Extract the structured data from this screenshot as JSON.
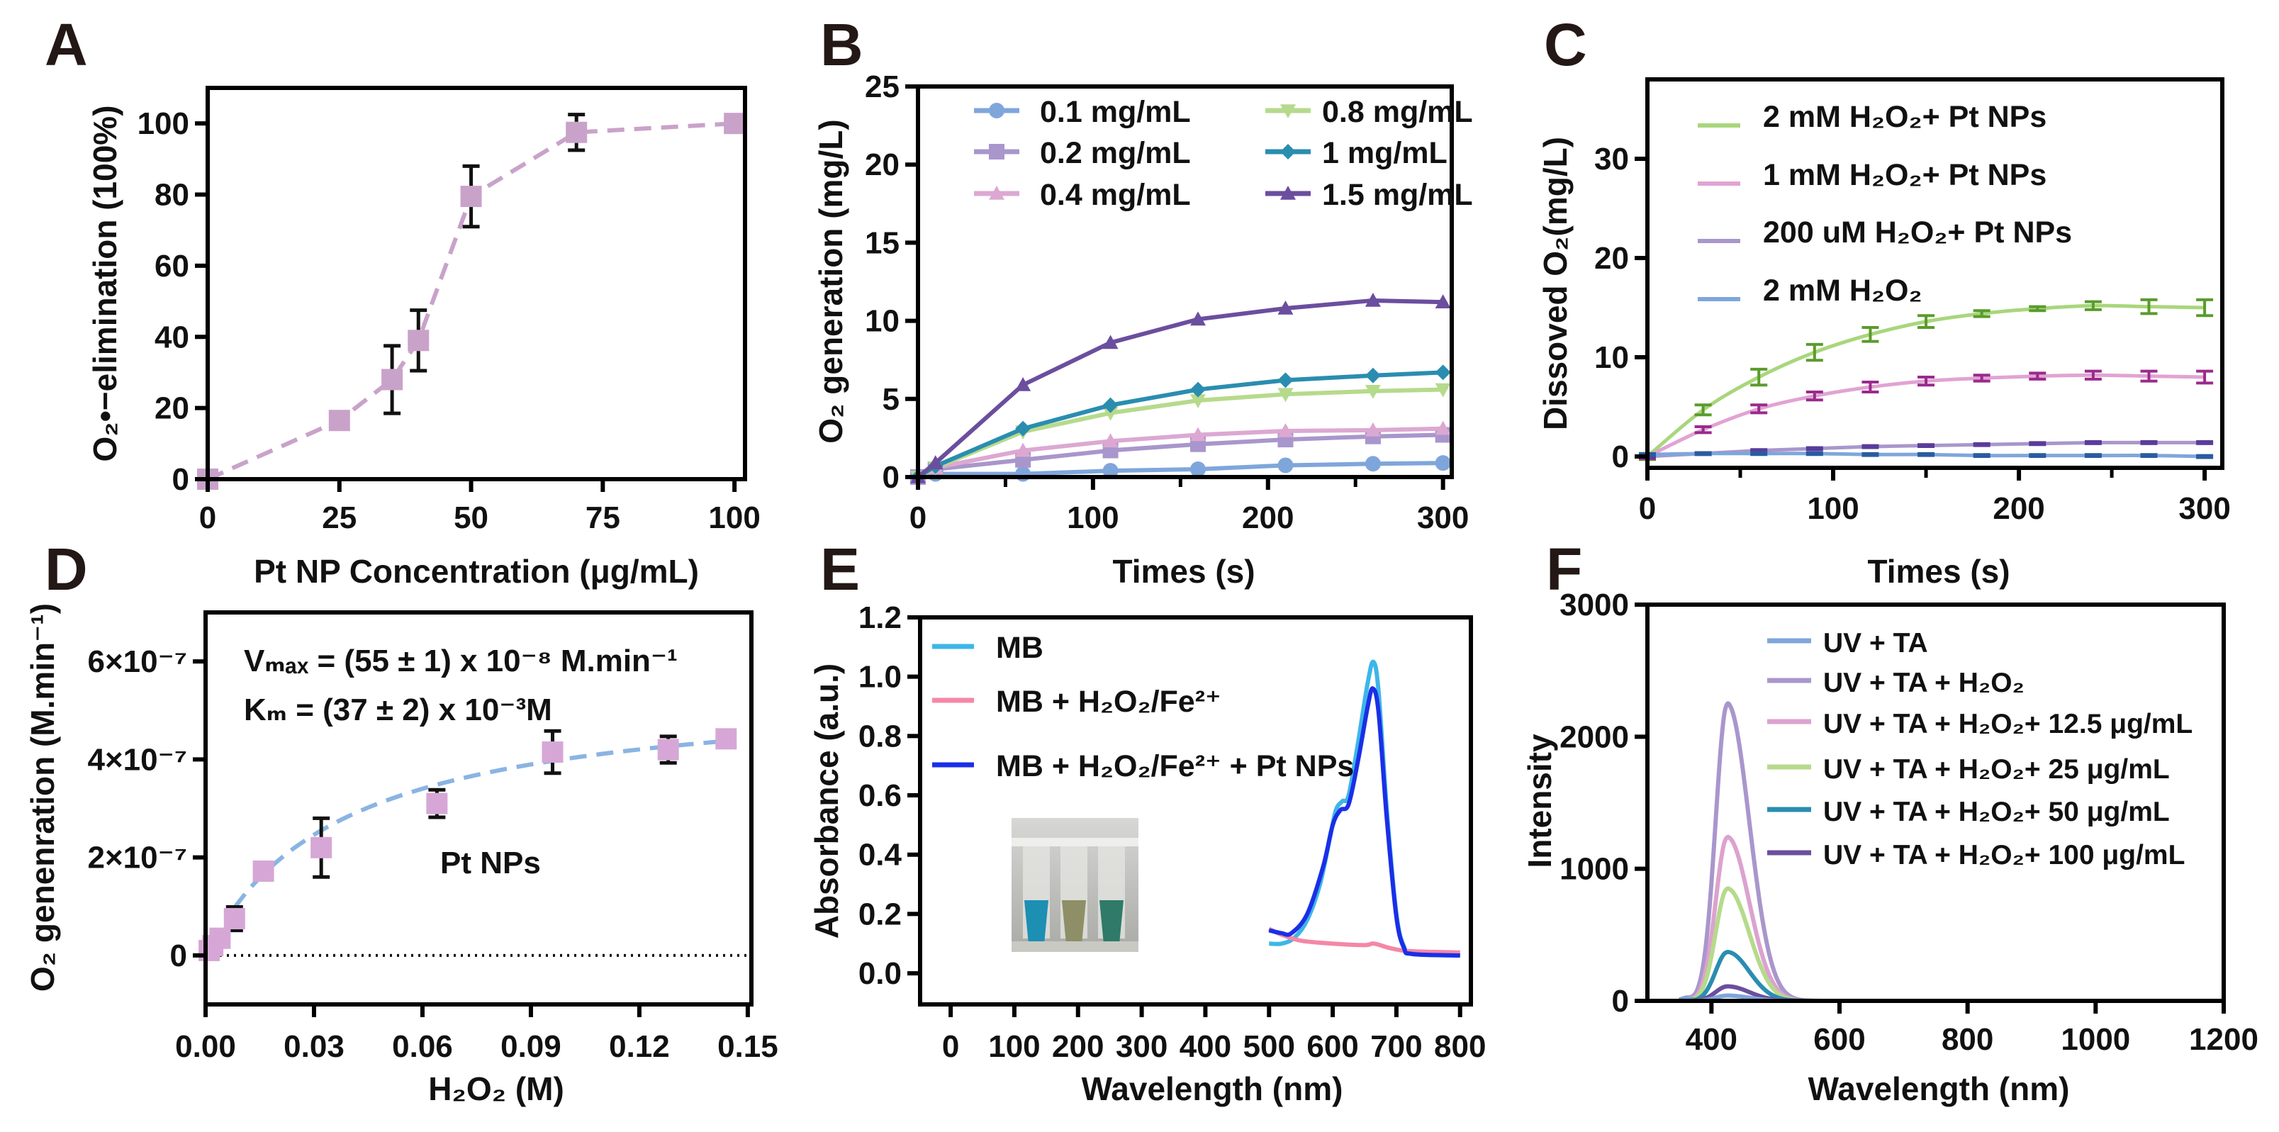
{
  "figure": {
    "panel_labels": [
      "A",
      "B",
      "C",
      "D",
      "E",
      "F"
    ]
  },
  "chart_data": [
    {
      "panel": "A",
      "type": "line",
      "xlabel": "Pt NP Concentration  (μg/mL)",
      "ylabel": "O₂•−elimination (100%)",
      "xlim": [
        0,
        102
      ],
      "ylim": [
        0,
        110
      ],
      "x_ticks": [
        {
          "value": 0,
          "label": "0"
        },
        {
          "value": 25,
          "label": "25"
        },
        {
          "value": 50,
          "label": "50"
        },
        {
          "value": 75,
          "label": "75"
        },
        {
          "value": 100,
          "label": "100"
        }
      ],
      "y_ticks": [
        {
          "value": 0,
          "label": "0"
        },
        {
          "value": 20,
          "label": "20"
        },
        {
          "value": 40,
          "label": "40"
        },
        {
          "value": 60,
          "label": "60"
        },
        {
          "value": 80,
          "label": "80"
        },
        {
          "value": 100,
          "label": "100"
        }
      ],
      "series": [
        {
          "x": [
            0,
            25,
            35,
            40,
            50,
            70,
            100
          ],
          "y": [
            0,
            16.5,
            28,
            39,
            79.5,
            97.5,
            100
          ],
          "err": [
            0,
            0,
            9.5,
            8.5,
            8.5,
            5,
            0
          ],
          "color": "#c9a2c9",
          "line_style": "dashed",
          "marker": "square"
        }
      ]
    },
    {
      "panel": "B",
      "type": "line",
      "xlabel": "Times (s)",
      "ylabel": "O₂ generation (mg/L)",
      "xlim": [
        0,
        305
      ],
      "ylim": [
        0,
        25
      ],
      "x_ticks": [
        {
          "value": 0,
          "label": "0"
        },
        {
          "value": 100,
          "label": "100"
        },
        {
          "value": 200,
          "label": "200"
        },
        {
          "value": 300,
          "label": "300"
        }
      ],
      "y_ticks": [
        {
          "value": 0,
          "label": "0"
        },
        {
          "value": 5,
          "label": "5"
        },
        {
          "value": 10,
          "label": "10"
        },
        {
          "value": 15,
          "label": "15"
        },
        {
          "value": 20,
          "label": "20"
        },
        {
          "value": 25,
          "label": "25"
        }
      ],
      "legend": "top",
      "x": [
        0,
        10,
        60,
        110,
        160,
        210,
        260,
        300
      ],
      "series": [
        {
          "name": "0.1 mg/mL",
          "values": [
            0,
            0.2,
            0.2,
            0.4,
            0.5,
            0.75,
            0.85,
            0.9
          ],
          "color": "#7fa6db",
          "marker": "circle"
        },
        {
          "name": "0.2 mg/mL",
          "values": [
            0,
            0.5,
            1.1,
            1.7,
            2.1,
            2.4,
            2.6,
            2.7
          ],
          "color": "#a996cc",
          "marker": "square"
        },
        {
          "name": "0.4 mg/mL",
          "values": [
            0,
            0.6,
            1.7,
            2.3,
            2.7,
            2.95,
            3.0,
            3.1
          ],
          "color": "#dca8d2",
          "marker": "triangle"
        },
        {
          "name": "0.8 mg/mL",
          "values": [
            0,
            0.6,
            2.9,
            4.1,
            4.9,
            5.3,
            5.5,
            5.6
          ],
          "color": "#b6da8c",
          "marker": "triangle-down"
        },
        {
          "name": "1 mg/mL",
          "values": [
            0,
            0.7,
            3.1,
            4.6,
            5.6,
            6.2,
            6.5,
            6.7
          ],
          "color": "#2a8db0",
          "marker": "diamond"
        },
        {
          "name": "1.5 mg/mL",
          "values": [
            0,
            0.9,
            5.9,
            8.6,
            10.1,
            10.8,
            11.3,
            11.2
          ],
          "color": "#6b4e9e",
          "marker": "triangle"
        }
      ]
    },
    {
      "panel": "C",
      "type": "line",
      "xlabel": "Times (s)",
      "ylabel": "Dissoved O₂(mg/L)",
      "xlim": [
        0,
        309.5
      ],
      "ylim": [
        -1.14,
        38
      ],
      "x_ticks": [
        {
          "value": 0,
          "label": "0"
        },
        {
          "value": 100,
          "label": "100"
        },
        {
          "value": 200,
          "label": "200"
        },
        {
          "value": 300,
          "label": "300"
        }
      ],
      "y_ticks": [
        {
          "value": 0,
          "label": "0"
        },
        {
          "value": 10,
          "label": "10"
        },
        {
          "value": 20,
          "label": "20"
        },
        {
          "value": 30,
          "label": "30"
        }
      ],
      "legend": "top-left",
      "x": [
        0,
        30,
        60,
        90,
        120,
        150,
        180,
        210,
        240,
        270,
        300
      ],
      "series": [
        {
          "name": "2 mM H₂O₂+ Pt NPs",
          "values": [
            0,
            4.7,
            8,
            10.5,
            12.3,
            13.6,
            14.4,
            14.9,
            15.2,
            15.1,
            15
          ],
          "err": [
            0.3,
            0.5,
            0.8,
            0.8,
            0.7,
            0.6,
            0.3,
            0.2,
            0.4,
            0.7,
            0.8
          ],
          "color": "#a9d67c",
          "err_color": "#5a9b2c"
        },
        {
          "name": "1 mM H₂O₂+ Pt NPs",
          "values": [
            0,
            2.7,
            4.8,
            6.1,
            7,
            7.6,
            7.9,
            8.1,
            8.2,
            8.1,
            8
          ],
          "err": [
            0.2,
            0.3,
            0.4,
            0.4,
            0.5,
            0.4,
            0.3,
            0.3,
            0.4,
            0.5,
            0.6
          ],
          "color": "#e1a3d3",
          "err_color": "#9a2a8c"
        },
        {
          "name": "200 uM H₂O₂+ Pt NPs",
          "values": [
            0,
            0.3,
            0.6,
            0.8,
            1,
            1.1,
            1.2,
            1.3,
            1.4,
            1.4,
            1.4
          ],
          "err": [
            0.1,
            0.1,
            0.1,
            0.1,
            0.1,
            0.1,
            0.1,
            0.1,
            0.1,
            0.1,
            0.1
          ],
          "color": "#a996cc",
          "err_color": "#5b3b9b"
        },
        {
          "name": "2 mM H₂O₂",
          "values": [
            0.2,
            0.3,
            0.3,
            0.3,
            0.2,
            0.2,
            0.1,
            0.1,
            0.1,
            0.1,
            0.0
          ],
          "err": [
            0.1,
            0.1,
            0.1,
            0.1,
            0.1,
            0.1,
            0.1,
            0.1,
            0.1,
            0.1,
            0.1
          ],
          "color": "#7fa6db",
          "err_color": "#2a5ba1"
        }
      ]
    },
    {
      "panel": "D",
      "type": "scatter",
      "xlabel": "H₂O₂ (M)",
      "ylabel": "O₂ genenration (M.min⁻¹)",
      "xlim": [
        0,
        0.151
      ],
      "ylim": [
        -1e-07,
        7e-07
      ],
      "x_ticks": [
        {
          "value": 0,
          "label": "0.00"
        },
        {
          "value": 0.03,
          "label": "0.03"
        },
        {
          "value": 0.06,
          "label": "0.06"
        },
        {
          "value": 0.09,
          "label": "0.09"
        },
        {
          "value": 0.12,
          "label": "0.12"
        },
        {
          "value": 0.15,
          "label": "0.15"
        }
      ],
      "y_ticks": [
        {
          "value": 0,
          "label": "0"
        },
        {
          "value": 2e-07,
          "label": "2×10⁻⁷"
        },
        {
          "value": 4e-07,
          "label": "4×10⁻⁷"
        },
        {
          "value": 6e-07,
          "label": "6×10⁻⁷"
        }
      ],
      "annotations": [
        "Vₘₐₓ = (55 ± 1) x 10⁻⁸ M.min⁻¹",
        "Kₘ = (37 ± 2) x 10⁻³M",
        "Pt NPs"
      ],
      "points": {
        "x": [
          0.001,
          0.002,
          0.004,
          0.008,
          0.016,
          0.032,
          0.064,
          0.096,
          0.128,
          0.144
        ],
        "y": [
          1e-08,
          2e-08,
          3.5e-08,
          7.5e-08,
          1.72e-07,
          2.2e-07,
          3.1e-07,
          4.15e-07,
          4.2e-07,
          4.42e-07
        ],
        "err": [
          0,
          0,
          0,
          2.4e-08,
          0,
          6e-08,
          2.8e-08,
          4.3e-08,
          2.7e-08,
          0
        ],
        "color": "#d6a7d6"
      },
      "fit": {
        "model": "michaelis-menten",
        "vmax": 5.5e-07,
        "km": 0.037,
        "x_range": [
          0.008,
          0.144
        ],
        "color": "#8ab4e2"
      },
      "reference_line_y": 0
    },
    {
      "panel": "E",
      "type": "line",
      "xlabel": "Wavelength (nm)",
      "ylabel": "Absorbance (a.u.)",
      "xlim": [
        -48,
        817
      ],
      "ylim": [
        -0.105,
        1.2
      ],
      "x_ticks": [
        {
          "value": 0,
          "label": "0"
        },
        {
          "value": 100,
          "label": "100"
        },
        {
          "value": 200,
          "label": "200"
        },
        {
          "value": 300,
          "label": "300"
        },
        {
          "value": 400,
          "label": "400"
        },
        {
          "value": 500,
          "label": "500"
        },
        {
          "value": 600,
          "label": "600"
        },
        {
          "value": 700,
          "label": "700"
        },
        {
          "value": 800,
          "label": "800"
        }
      ],
      "y_ticks": [
        {
          "value": 0,
          "label": "0.0"
        },
        {
          "value": 0.2,
          "label": "0.2"
        },
        {
          "value": 0.4,
          "label": "0.4"
        },
        {
          "value": 0.6,
          "label": "0.6"
        },
        {
          "value": 0.8,
          "label": "0.8"
        },
        {
          "value": 1.0,
          "label": "1.0"
        },
        {
          "value": 1.2,
          "label": "1.2"
        }
      ],
      "legend": "top-left",
      "inset": {
        "tube_colors": [
          "#1c8fb3",
          "#8e8f66",
          "#2f7a69"
        ]
      },
      "series": [
        {
          "name": "MB",
          "color": "#3db6e8",
          "points": [
            [
              500,
              0.1
            ],
            [
              520,
              0.1
            ],
            [
              540,
              0.12
            ],
            [
              560,
              0.18
            ],
            [
              580,
              0.3
            ],
            [
              595,
              0.45
            ],
            [
              605,
              0.55
            ],
            [
              615,
              0.58
            ],
            [
              625,
              0.6
            ],
            [
              640,
              0.78
            ],
            [
              655,
              0.98
            ],
            [
              664,
              1.05
            ],
            [
              672,
              0.95
            ],
            [
              685,
              0.55
            ],
            [
              700,
              0.2
            ],
            [
              712,
              0.09
            ],
            [
              725,
              0.065
            ],
            [
              800,
              0.06
            ]
          ]
        },
        {
          "name": "MB + H₂O₂/Fe²⁺",
          "color": "#f587a6",
          "points": [
            [
              500,
              0.15
            ],
            [
              520,
              0.13
            ],
            [
              550,
              0.11
            ],
            [
              600,
              0.1
            ],
            [
              650,
              0.095
            ],
            [
              665,
              0.1
            ],
            [
              690,
              0.085
            ],
            [
              720,
              0.075
            ],
            [
              800,
              0.07
            ]
          ]
        },
        {
          "name": "MB + H₂O₂/Fe²⁺ + Pt NPs",
          "color": "#1a2fe8",
          "points": [
            [
              500,
              0.145
            ],
            [
              520,
              0.135
            ],
            [
              535,
              0.135
            ],
            [
              560,
              0.2
            ],
            [
              585,
              0.36
            ],
            [
              600,
              0.5
            ],
            [
              612,
              0.55
            ],
            [
              625,
              0.57
            ],
            [
              640,
              0.72
            ],
            [
              655,
              0.9
            ],
            [
              663,
              0.96
            ],
            [
              672,
              0.88
            ],
            [
              685,
              0.52
            ],
            [
              700,
              0.19
            ],
            [
              712,
              0.085
            ],
            [
              725,
              0.065
            ],
            [
              800,
              0.06
            ]
          ]
        }
      ]
    },
    {
      "panel": "F",
      "type": "line",
      "xlabel": "Wavelength (nm)",
      "ylabel": "Intensity",
      "xlim": [
        300,
        1200
      ],
      "ylim": [
        0,
        3000
      ],
      "x_ticks": [
        {
          "value": 400,
          "label": "400"
        },
        {
          "value": 600,
          "label": "600"
        },
        {
          "value": 800,
          "label": "800"
        },
        {
          "value": 1000,
          "label": "1000"
        },
        {
          "value": 1200,
          "label": "1200"
        }
      ],
      "y_ticks": [
        {
          "value": 0,
          "label": "0"
        },
        {
          "value": 1000,
          "label": "1000"
        },
        {
          "value": 2000,
          "label": "2000"
        },
        {
          "value": 3000,
          "label": "3000"
        }
      ],
      "legend": "top-right",
      "peak_wavelength": 425,
      "wavelength_range": [
        350,
        600
      ],
      "series": [
        {
          "name": "UV + TA",
          "peak": 40,
          "color": "#7fa6db"
        },
        {
          "name": "UV + TA + H₂O₂",
          "peak": 2250,
          "color": "#a996cc"
        },
        {
          "name": "UV + TA + H₂O₂+ 12.5 μg/mL",
          "peak": 1240,
          "color": "#dca2cf"
        },
        {
          "name": "UV + TA + H₂O₂+ 25 μg/mL",
          "peak": 850,
          "color": "#b6da8c"
        },
        {
          "name": "UV + TA + H₂O₂+ 50 μg/mL",
          "peak": 370,
          "color": "#2a8db0"
        },
        {
          "name": "UV + TA + H₂O₂+ 100 μg/mL",
          "peak": 110,
          "color": "#6b4e9e"
        }
      ]
    }
  ]
}
